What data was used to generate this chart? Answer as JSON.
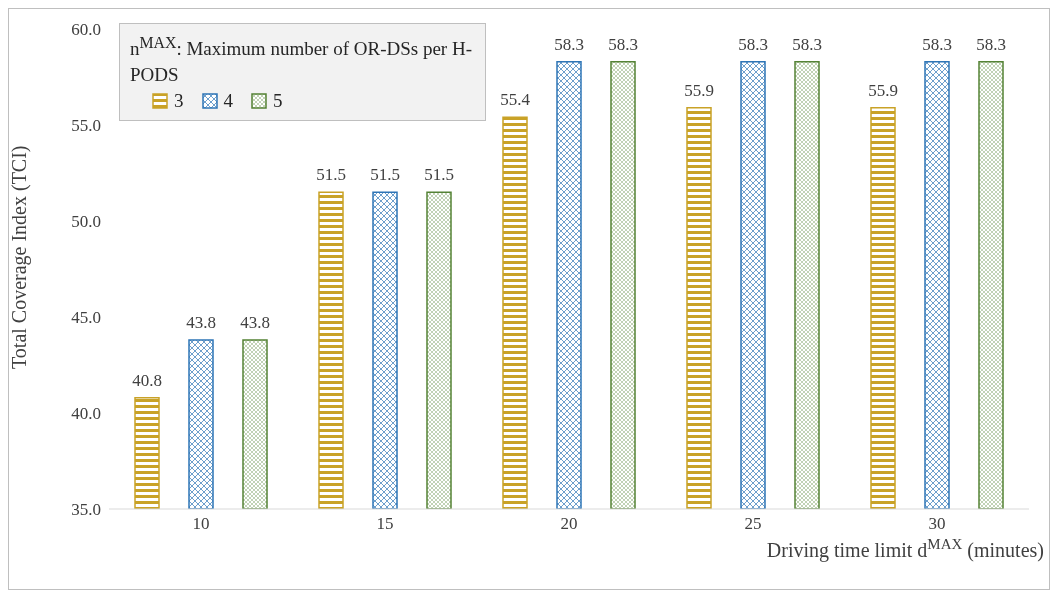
{
  "chart_data": {
    "type": "bar",
    "categories": [
      "10",
      "15",
      "20",
      "25",
      "30"
    ],
    "series": [
      {
        "name": "3",
        "color": "#c9a227",
        "values": [
          40.8,
          51.5,
          55.4,
          55.9,
          55.9
        ]
      },
      {
        "name": "4",
        "color": "#2e75b6",
        "values": [
          43.8,
          51.5,
          58.3,
          58.3,
          58.3
        ]
      },
      {
        "name": "5",
        "color": "#548235",
        "values": [
          43.8,
          51.5,
          58.3,
          58.3,
          58.3
        ]
      }
    ],
    "ylim": [
      35,
      60
    ],
    "yticks": [
      {
        "value": 35,
        "label": "35.0"
      },
      {
        "value": 40,
        "label": "40.0"
      },
      {
        "value": 45,
        "label": "45.0"
      },
      {
        "value": 50,
        "label": "50.0"
      },
      {
        "value": 55,
        "label": "55.0"
      },
      {
        "value": 60,
        "label": "60.0"
      }
    ],
    "ylabel": "Total Coverage Index (TCI)",
    "xlabel": "Driving time limit d$^{MAX}$ (minutes)",
    "legend_title": "n$^{MAX}$: Maximum number of OR-DSs per H-PODS",
    "legend": "top left",
    "data_labels": true
  }
}
